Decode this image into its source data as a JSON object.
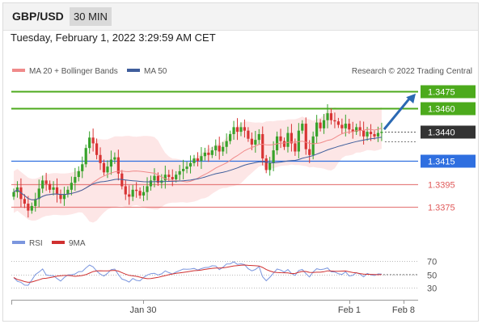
{
  "header": {
    "symbol": "GBP/USD",
    "timeframe": "30 MIN"
  },
  "datetime": "Tuesday, February 1, 2022 3:29:59 AM CET",
  "legend": {
    "ma20_bb": "MA 20 + Bollinger Bands",
    "ma50": "MA 50",
    "research": "Research © 2022 Trading Central",
    "rsi": "RSI",
    "ma9": "9MA"
  },
  "colors": {
    "resistance": "#4caa1c",
    "support": "#e05a5a",
    "pivot": "#2f6fe0",
    "current": "#333333",
    "candle_up": "#37a22a",
    "candle_down": "#d83434",
    "bollinger_fill": "#fde2e2",
    "ma20": "#f08a8a",
    "ma50": "#3f5e9c",
    "rsi": "#7b96de",
    "rsi_ma": "#d03030",
    "arrow": "#2b69b3"
  },
  "chart_data": [
    {
      "type": "candlestick",
      "title": "",
      "xlabel": "",
      "ylabel": "",
      "ylim": [
        1.3362,
        1.3484
      ],
      "x_ticks": [
        "Jan 30",
        "Feb 1",
        "Feb 8"
      ],
      "levels": [
        {
          "value": 1.3475,
          "label": "1.3475",
          "kind": "resistance"
        },
        {
          "value": 1.346,
          "label": "1.3460",
          "kind": "resistance"
        },
        {
          "value": 1.344,
          "label": "1.3440",
          "kind": "current"
        },
        {
          "value": 1.3415,
          "label": "1.3415",
          "kind": "pivot"
        },
        {
          "value": 1.3395,
          "label": "1.3395",
          "kind": "support"
        },
        {
          "value": 1.3375,
          "label": "1.3375",
          "kind": "support"
        }
      ],
      "close": [
        1.3388,
        1.3392,
        1.3382,
        1.3378,
        1.3372,
        1.3376,
        1.3382,
        1.3391,
        1.3398,
        1.3395,
        1.339,
        1.3392,
        1.3386,
        1.3382,
        1.3386,
        1.339,
        1.3396,
        1.3401,
        1.3406,
        1.3412,
        1.3426,
        1.3435,
        1.343,
        1.342,
        1.3413,
        1.3405,
        1.341,
        1.3416,
        1.3418,
        1.3404,
        1.3393,
        1.3386,
        1.3384,
        1.339,
        1.3389,
        1.3385,
        1.3388,
        1.3393,
        1.3398,
        1.3402,
        1.3396,
        1.3398,
        1.3403,
        1.3401,
        1.3399,
        1.3403,
        1.3406,
        1.3408,
        1.341,
        1.3413,
        1.3417,
        1.3415,
        1.3419,
        1.3422,
        1.342,
        1.3424,
        1.3428,
        1.3423,
        1.3427,
        1.3432,
        1.3438,
        1.3444,
        1.344,
        1.3444,
        1.3441,
        1.3434,
        1.3429,
        1.3433,
        1.3438,
        1.3417,
        1.3407,
        1.3413,
        1.3424,
        1.3436,
        1.3432,
        1.3427,
        1.3439,
        1.343,
        1.3423,
        1.3441,
        1.3447,
        1.3425,
        1.342,
        1.3436,
        1.3448,
        1.3443,
        1.345,
        1.3456,
        1.345,
        1.3449,
        1.3446,
        1.3443,
        1.3447,
        1.3442,
        1.344,
        1.3444,
        1.3441,
        1.3436,
        1.344,
        1.3438,
        1.3436,
        1.3439,
        1.344
      ],
      "rsi": {
        "ylim": [
          20,
          80
        ],
        "ticks": [
          30,
          50,
          70
        ],
        "rsi": [
          45.1,
          39.3,
          37.9,
          33.6,
          33.4,
          41.2,
          49.7,
          53.4,
          58.1,
          49.0,
          48.1,
          48.0,
          43.6,
          39.8,
          45.1,
          49.2,
          49.4,
          50.5,
          54.0,
          54.3,
          59.7,
          64.1,
          61.3,
          54.9,
          50.2,
          47.3,
          51.6,
          57.1,
          57.9,
          49.8,
          42.8,
          41.0,
          38.2,
          43.7,
          40.8,
          40.1,
          45.4,
          48.9,
          51.0,
          51.5,
          48.9,
          50.7,
          55.2,
          52.6,
          50.5,
          53.4,
          55.8,
          57.9,
          57.7,
          58.0,
          58.9,
          56.5,
          58.6,
          60.3,
          60.5,
          63.0,
          62.6,
          57.1,
          60.8,
          65.5,
          65.8,
          69.0,
          65.1,
          65.9,
          64.7,
          58.5,
          55.3,
          57.3,
          61.6,
          46.3,
          40.2,
          45.6,
          51.7,
          57.9,
          56.5,
          53.3,
          57.2,
          51.2,
          48.3,
          55.7,
          57.4,
          51.1,
          46.0,
          53.5,
          58.4,
          57.1,
          58.0,
          59.7,
          53.8,
          53.6,
          50.8,
          49.7,
          53.8,
          47.4,
          48.4,
          52.6,
          50.2,
          46.2,
          51.2,
          49.3,
          48.2,
          50.6,
          50.2
        ]
      }
    }
  ]
}
